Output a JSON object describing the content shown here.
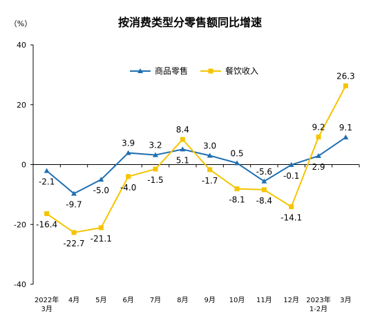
{
  "chart_data": {
    "type": "line",
    "title": "按消费类型分零售额同比增速",
    "unit_label": "（%）",
    "ylim": [
      -40,
      40
    ],
    "yticks": [
      40,
      20,
      0,
      -20,
      -40
    ],
    "categories": [
      [
        "2022年",
        "3月"
      ],
      [
        "4月"
      ],
      [
        "5月"
      ],
      [
        "6月"
      ],
      [
        "7月"
      ],
      [
        "8月"
      ],
      [
        "9月"
      ],
      [
        "10月"
      ],
      [
        "11月"
      ],
      [
        "12月"
      ],
      [
        "2023年",
        "1-2月"
      ],
      [
        "3月"
      ]
    ],
    "series": [
      {
        "name": "商品零售",
        "color": "#1f6fb2",
        "marker": "triangle",
        "values": [
          -2.1,
          -9.7,
          -5.0,
          3.9,
          3.2,
          5.1,
          3.0,
          0.5,
          -5.6,
          -0.1,
          2.9,
          9.1
        ],
        "labels": [
          "-2.1",
          "-9.7",
          "-5.0",
          "3.9",
          "3.2",
          "5.1",
          "3.0",
          "0.5",
          "-5.6",
          "-0.1",
          "2.9",
          "9.1"
        ]
      },
      {
        "name": "餐饮收入",
        "color": "#f5c400",
        "marker": "square",
        "values": [
          -16.4,
          -22.7,
          -21.1,
          -4.0,
          -1.5,
          8.4,
          -1.7,
          -8.1,
          -8.4,
          -14.1,
          9.2,
          26.3
        ],
        "labels": [
          "-16.4",
          "-22.7",
          "-21.1",
          "-4.0",
          "-1.5",
          "8.4",
          "-1.7",
          "-8.1",
          "-8.4",
          "-14.1",
          "9.2",
          "26.3"
        ]
      }
    ],
    "legend_position": "top-center",
    "grid": false
  }
}
